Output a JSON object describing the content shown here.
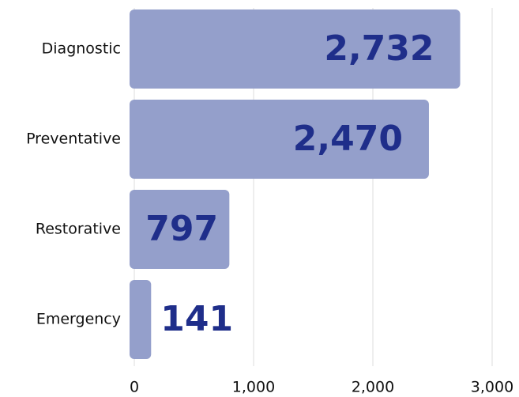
{
  "chart_data": {
    "type": "bar",
    "orientation": "horizontal",
    "categories": [
      "Diagnostic",
      "Preventative",
      "Restorative",
      "Emergency"
    ],
    "values": [
      2732,
      2470,
      797,
      141
    ],
    "value_labels": [
      "2,732",
      "2,470",
      "797",
      "141"
    ],
    "color": "#949fcb",
    "label_color": "#1f2e8a",
    "xlim": [
      0,
      3000
    ],
    "xticks": [
      0,
      {
        "value": 1000,
        "label": "1,000"
      },
      {
        "value": 2000,
        "label": "2,000"
      },
      {
        "value": 3000,
        "label": "3,000"
      }
    ],
    "grid": true
  }
}
